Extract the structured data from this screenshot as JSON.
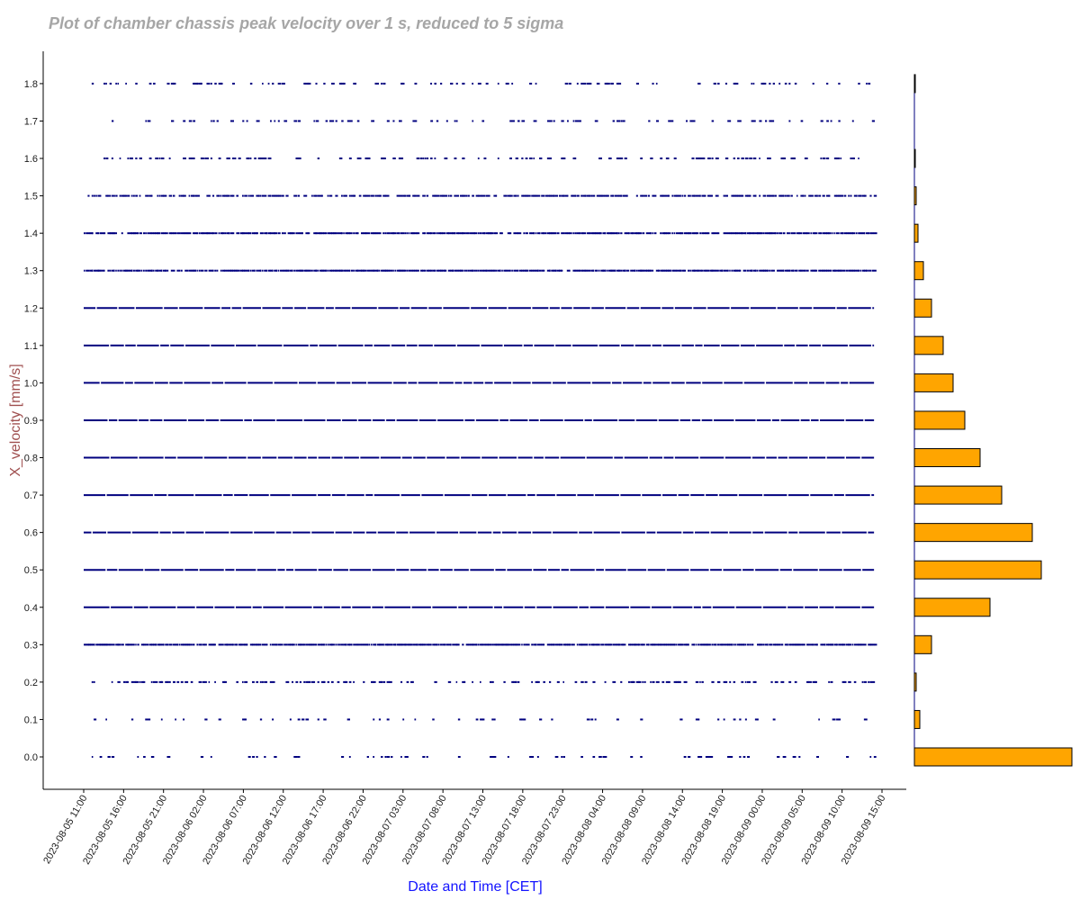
{
  "chart_data": [
    {
      "type": "scatter",
      "title": "Plot of chamber chassis peak velocity over 1 s, reduced to 5 sigma",
      "xlabel": "Date and Time [CET]",
      "ylabel": "X_velocity [mm/s]",
      "x_ticks": [
        "2023-08-05 11:00",
        "2023-08-05 16:00",
        "2023-08-05 21:00",
        "2023-08-06 02:00",
        "2023-08-06 07:00",
        "2023-08-06 12:00",
        "2023-08-06 17:00",
        "2023-08-06 22:00",
        "2023-08-07 03:00",
        "2023-08-07 08:00",
        "2023-08-07 13:00",
        "2023-08-07 18:00",
        "2023-08-07 23:00",
        "2023-08-08 04:00",
        "2023-08-08 09:00",
        "2023-08-08 14:00",
        "2023-08-08 19:00",
        "2023-08-09 00:00",
        "2023-08-09 05:00",
        "2023-08-09 10:00",
        "2023-08-09 15:00"
      ],
      "y_ticks": [
        "0.0",
        "0.1",
        "0.2",
        "0.3",
        "0.4",
        "0.5",
        "0.6",
        "0.7",
        "0.8",
        "0.9",
        "1.0",
        "1.1",
        "1.2",
        "1.3",
        "1.4",
        "1.5",
        "1.6",
        "1.7",
        "1.8"
      ],
      "xlim": [
        "2023-08-05 11:00",
        "2023-08-09 14:00"
      ],
      "ylim": [
        0.0,
        1.8
      ],
      "grid": false,
      "point_color": "#00007f",
      "series": [
        {
          "y": 0.0,
          "x_start": "2023-08-05 12:00",
          "x_end": "2023-08-09 14:00",
          "density": 0.18
        },
        {
          "y": 0.1,
          "x_start": "2023-08-05 12:00",
          "x_end": "2023-08-09 14:00",
          "density": 0.18
        },
        {
          "y": 0.2,
          "x_start": "2023-08-05 11:00",
          "x_end": "2023-08-09 14:00",
          "density": 0.35
        },
        {
          "y": 0.3,
          "x_start": "2023-08-05 11:00",
          "x_end": "2023-08-09 14:00",
          "density": 0.92
        },
        {
          "y": 0.4,
          "x_start": "2023-08-05 11:00",
          "x_end": "2023-08-09 14:00",
          "density": 1.0
        },
        {
          "y": 0.5,
          "x_start": "2023-08-05 11:00",
          "x_end": "2023-08-09 14:00",
          "density": 1.0
        },
        {
          "y": 0.6,
          "x_start": "2023-08-05 11:00",
          "x_end": "2023-08-09 14:00",
          "density": 1.0
        },
        {
          "y": 0.7,
          "x_start": "2023-08-05 11:00",
          "x_end": "2023-08-09 14:00",
          "density": 1.0
        },
        {
          "y": 0.8,
          "x_start": "2023-08-05 11:00",
          "x_end": "2023-08-09 14:00",
          "density": 1.0
        },
        {
          "y": 0.9,
          "x_start": "2023-08-05 11:00",
          "x_end": "2023-08-09 14:00",
          "density": 1.0
        },
        {
          "y": 1.0,
          "x_start": "2023-08-05 11:00",
          "x_end": "2023-08-09 14:00",
          "density": 1.0
        },
        {
          "y": 1.1,
          "x_start": "2023-08-05 11:00",
          "x_end": "2023-08-09 14:00",
          "density": 1.0
        },
        {
          "y": 1.2,
          "x_start": "2023-08-05 11:00",
          "x_end": "2023-08-09 14:00",
          "density": 1.0
        },
        {
          "y": 1.3,
          "x_start": "2023-08-05 11:00",
          "x_end": "2023-08-09 14:00",
          "density": 0.95
        },
        {
          "y": 1.4,
          "x_start": "2023-08-05 11:00",
          "x_end": "2023-08-09 14:00",
          "density": 0.88
        },
        {
          "y": 1.5,
          "x_start": "2023-08-05 11:00",
          "x_end": "2023-08-09 14:00",
          "density": 0.7
        },
        {
          "y": 1.6,
          "x_start": "2023-08-05 12:00",
          "x_end": "2023-08-09 14:00",
          "density": 0.3
        },
        {
          "y": 1.7,
          "x_start": "2023-08-05 14:00",
          "x_end": "2023-08-09 14:00",
          "density": 0.22
        },
        {
          "y": 1.8,
          "x_start": "2023-08-05 12:00",
          "x_end": "2023-08-09 14:00",
          "density": 0.25
        }
      ]
    },
    {
      "type": "bar",
      "orientation": "horizontal",
      "categories": [
        "0.0",
        "0.1",
        "0.2",
        "0.3",
        "0.4",
        "0.5",
        "0.6",
        "0.7",
        "0.8",
        "0.9",
        "1.0",
        "1.1",
        "1.2",
        "1.3",
        "1.4",
        "1.5",
        "1.6",
        "1.7",
        "1.8"
      ],
      "values": [
        175,
        6,
        2,
        19,
        84,
        141,
        131,
        97,
        73,
        56,
        43,
        32,
        19,
        10,
        4,
        2,
        1,
        0,
        1
      ],
      "bar_color": "#ffa500",
      "edge_color": "#000000",
      "axis_color": "#00007f"
    }
  ]
}
